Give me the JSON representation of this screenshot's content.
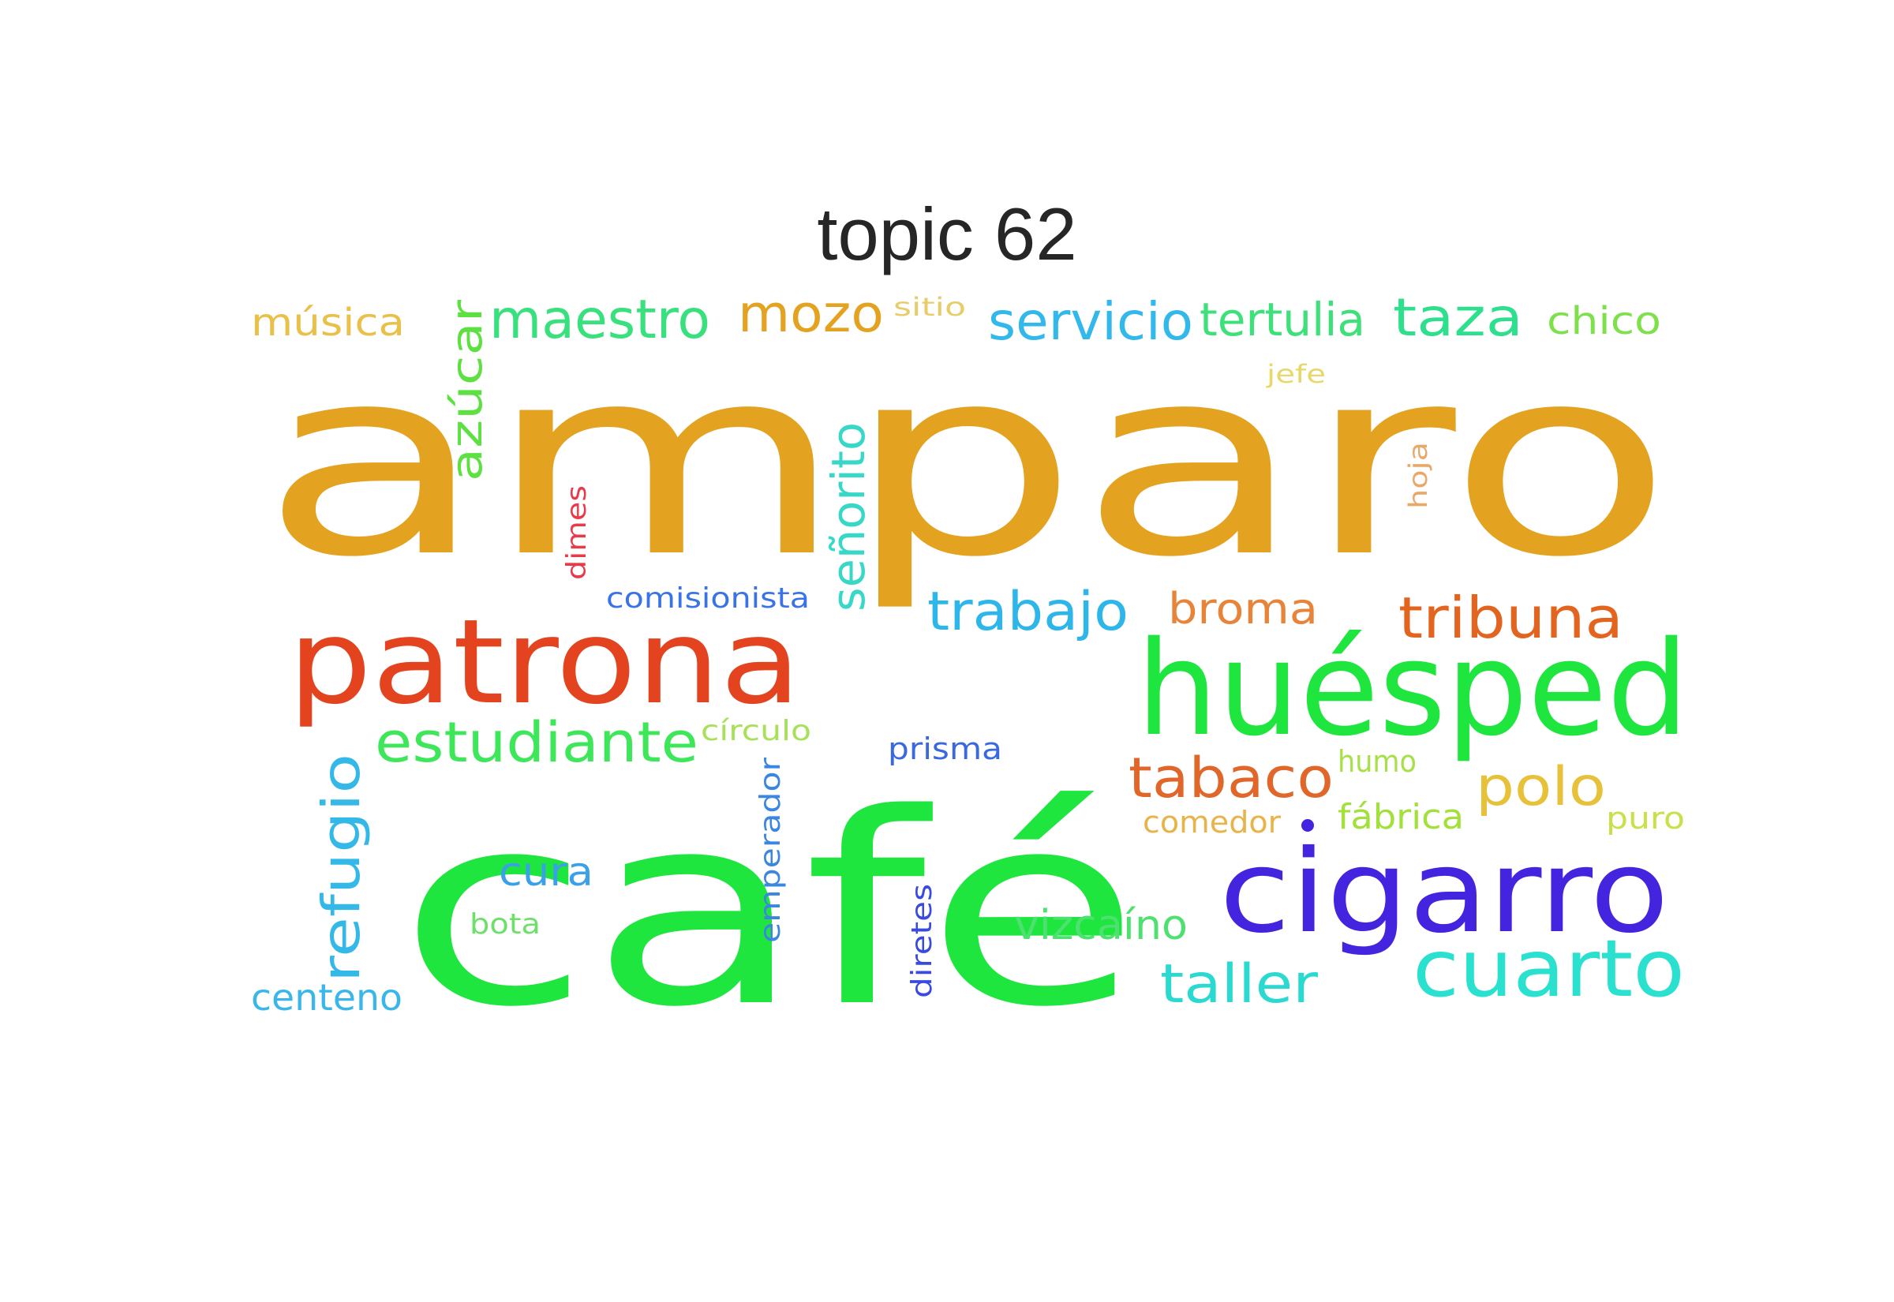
{
  "title": "topic 62",
  "words": [
    {
      "text": "amparo",
      "color": "#e3a21f"
    },
    {
      "text": "café",
      "color": "#1ee63e"
    },
    {
      "text": "patrona",
      "color": "#e3441f"
    },
    {
      "text": "huésped",
      "color": "#1ee63e"
    },
    {
      "text": "cigarro",
      "color": "#4524e0"
    },
    {
      "text": "cuarto",
      "color": "#2ae0cf"
    },
    {
      "text": "tribuna",
      "color": "#e3641f"
    },
    {
      "text": "estudiante",
      "color": "#3ee65a"
    },
    {
      "text": "trabajo",
      "color": "#2eb6ea"
    },
    {
      "text": "polo",
      "color": "#e8c13a"
    },
    {
      "text": "tabaco",
      "color": "#e0662a"
    },
    {
      "text": "refugio",
      "color": "#34b8e8"
    },
    {
      "text": "taller",
      "color": "#2ad9d0"
    },
    {
      "text": "maestro",
      "color": "#38e07e"
    },
    {
      "text": "mozo",
      "color": "#e3a21f"
    },
    {
      "text": "servicio",
      "color": "#32b8ea"
    },
    {
      "text": "taza",
      "color": "#2ee08e"
    },
    {
      "text": "tertulia",
      "color": "#3ee07a"
    },
    {
      "text": "señorito",
      "color": "#38d8c8"
    },
    {
      "text": "azúcar",
      "color": "#5ee043"
    },
    {
      "text": "broma",
      "color": "#e8843a"
    },
    {
      "text": "vizcaíno",
      "color": "#4ee070"
    },
    {
      "text": "cura",
      "color": "#3aa0e8"
    },
    {
      "text": "centeno",
      "color": "#3ab6ea"
    },
    {
      "text": "chico",
      "color": "#7ee04a"
    },
    {
      "text": "música",
      "color": "#e8c04a"
    },
    {
      "text": "comisionista",
      "color": "#3a72e8"
    },
    {
      "text": "prisma",
      "color": "#3a68e0"
    },
    {
      "text": "emperador",
      "color": "#3a86e0"
    },
    {
      "text": "diretes",
      "color": "#3a4ae0"
    },
    {
      "text": "dimes",
      "color": "#e83a48"
    },
    {
      "text": "fábrica",
      "color": "#a2e03a"
    },
    {
      "text": "humo",
      "color": "#a8e04a"
    },
    {
      "text": "comedor",
      "color": "#e8b44a"
    },
    {
      "text": "círculo",
      "color": "#a8e05a"
    },
    {
      "text": "bota",
      "color": "#6ee06a"
    },
    {
      "text": "puro",
      "color": "#c8e04a"
    },
    {
      "text": "hoja",
      "color": "#e8a86a"
    },
    {
      "text": "jefe",
      "color": "#e8d86a"
    },
    {
      "text": "sitio",
      "color": "#e8cc6a"
    }
  ]
}
